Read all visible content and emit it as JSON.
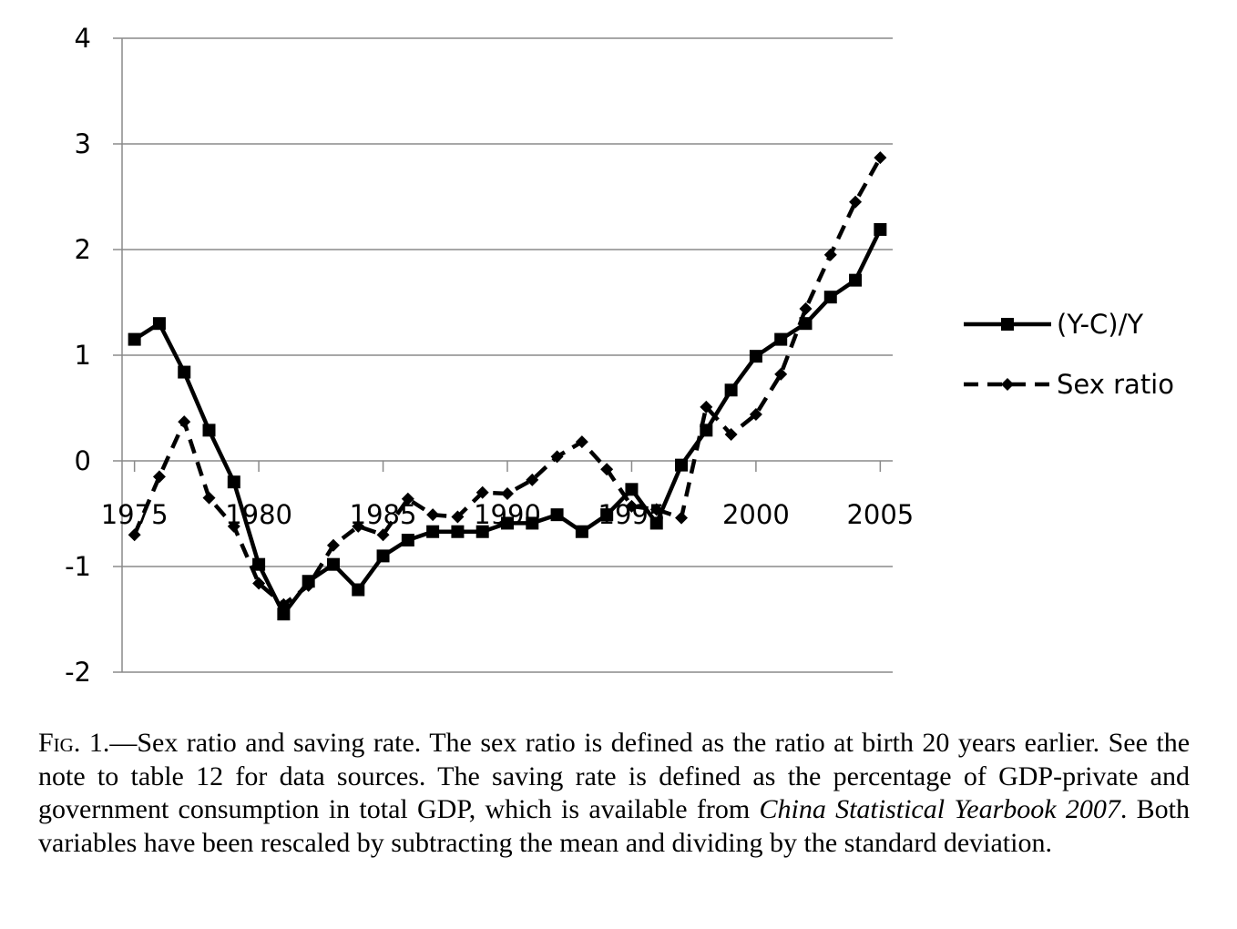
{
  "chart_data": {
    "type": "line",
    "title": "",
    "xlabel": "",
    "ylabel": "",
    "x": [
      1975,
      1976,
      1977,
      1978,
      1979,
      1980,
      1981,
      1982,
      1983,
      1984,
      1985,
      1986,
      1987,
      1988,
      1989,
      1990,
      1991,
      1992,
      1993,
      1994,
      1995,
      1996,
      1997,
      1998,
      1999,
      2000,
      2001,
      2002,
      2003,
      2004,
      2005
    ],
    "xticks": [
      1975,
      1980,
      1985,
      1990,
      1995,
      2000,
      2005
    ],
    "xtick_labels": [
      "1975",
      "1980",
      "1985",
      "1990",
      "1995",
      "2000",
      "2005"
    ],
    "xlim": [
      1974.5,
      2005.5
    ],
    "ylim": [
      -2,
      4
    ],
    "yticks": [
      -2,
      -1,
      0,
      1,
      2,
      3,
      4
    ],
    "ytick_labels": [
      "-2",
      "-1",
      "0",
      "1",
      "2",
      "3",
      "4"
    ],
    "grid": "horizontal",
    "legend_position": "right",
    "series": [
      {
        "name": "(Y-C)/Y",
        "style": "solid",
        "marker": "square",
        "color": "#000000",
        "values": [
          1.15,
          1.3,
          0.84,
          0.29,
          -0.2,
          -0.98,
          -1.45,
          -1.14,
          -0.98,
          -1.22,
          -0.9,
          -0.75,
          -0.67,
          -0.67,
          -0.67,
          -0.59,
          -0.59,
          -0.51,
          -0.67,
          -0.51,
          -0.27,
          -0.59,
          -0.04,
          0.29,
          0.67,
          0.99,
          1.15,
          1.3,
          1.55,
          1.71,
          2.19
        ]
      },
      {
        "name": "Sex ratio",
        "style": "dashed",
        "marker": "diamond",
        "color": "#000000",
        "values": [
          -0.7,
          -0.15,
          0.37,
          -0.35,
          -0.62,
          -1.16,
          -1.36,
          -1.18,
          -0.8,
          -0.62,
          -0.7,
          -0.36,
          -0.51,
          -0.53,
          -0.3,
          -0.31,
          -0.18,
          0.04,
          0.18,
          -0.08,
          -0.43,
          -0.46,
          -0.54,
          0.51,
          0.25,
          0.44,
          0.82,
          1.44,
          1.95,
          2.45,
          2.87
        ]
      }
    ]
  },
  "caption": {
    "fig_label": "Fig. 1.",
    "part1": "—Sex ratio and saving rate. The sex ratio is defined as the ratio at birth 20 years earlier. See the note to table 12 for data sources. The saving rate is defined as the percentage of GDP-private and government consumption in total GDP, which is available from ",
    "italic": "China Statistical Yearbook 2007",
    "part2": ". Both variables have been rescaled by subtracting the mean and dividing by the standard deviation."
  }
}
